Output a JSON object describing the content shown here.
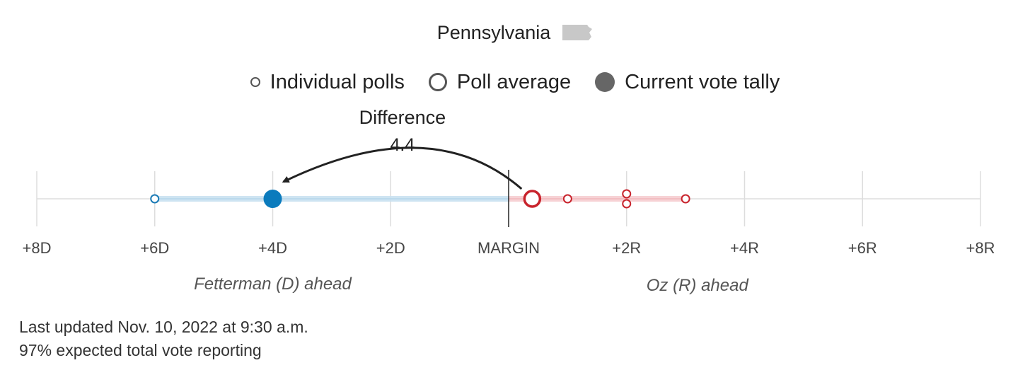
{
  "chart_data": {
    "type": "scatter",
    "title": "Pennsylvania",
    "legend": {
      "placement": "top-center",
      "items": [
        {
          "label": "Individual polls",
          "marker": "small-hollow-circle"
        },
        {
          "label": "Poll average",
          "marker": "hollow-circle"
        },
        {
          "label": "Current vote tally",
          "marker": "filled-circle"
        }
      ]
    },
    "x_axis": {
      "range": [
        -8,
        8
      ],
      "tick_values": [
        -8,
        -6,
        -4,
        -2,
        0,
        2,
        4,
        6,
        8
      ],
      "tick_labels": [
        "+8D",
        "+6D",
        "+4D",
        "+2D",
        "MARGIN",
        "+2R",
        "+4R",
        "+6R",
        "+8R"
      ],
      "side_labels": {
        "left": "Fetterman (D) ahead",
        "right": "Oz (R) ahead"
      }
    },
    "grid": true,
    "individual_polls": [
      {
        "margin": -6,
        "color": "#1a7ab5"
      },
      {
        "margin": 1,
        "color": "#c8232c"
      },
      {
        "margin": 2,
        "color": "#c8232c"
      },
      {
        "margin": 2,
        "color": "#c8232c"
      },
      {
        "margin": 3,
        "color": "#c8232c"
      }
    ],
    "poll_average": {
      "margin": 0.4,
      "color": "#c8232c"
    },
    "current_vote_tally": {
      "margin": -4,
      "color": "#0b7bbd"
    },
    "annotation": {
      "label": "Difference",
      "value": "4.4"
    },
    "colors": {
      "democrat": "#0b7bbd",
      "republican": "#c8232c",
      "democrat_band": "#c9e1f1",
      "republican_band": "#f6cdd0",
      "grid": "#dddddd"
    }
  },
  "footer": {
    "last_updated": "Last updated Nov. 10, 2022 at 9:30 a.m.",
    "reporting": "97% expected total vote reporting"
  }
}
